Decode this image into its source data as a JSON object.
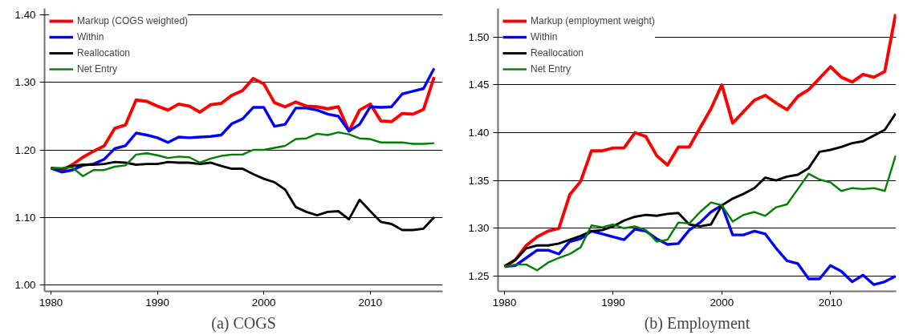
{
  "chart_data": [
    {
      "type": "line",
      "title": "(a) COGS",
      "x": [
        1980,
        1981,
        1982,
        1983,
        1984,
        1985,
        1986,
        1987,
        1988,
        1989,
        1990,
        1991,
        1992,
        1993,
        1994,
        1995,
        1996,
        1997,
        1998,
        1999,
        2000,
        2001,
        2002,
        2003,
        2004,
        2005,
        2006,
        2007,
        2008,
        2009,
        2010,
        2011,
        2012,
        2013,
        2014,
        2015,
        2016
      ],
      "xlim": [
        1979.4,
        2016.8
      ],
      "xticks": [
        1980,
        1990,
        2000,
        2010
      ],
      "ylim": [
        0.99,
        1.41
      ],
      "yticks": [
        {
          "value": 1.0,
          "label": "1.00"
        },
        {
          "value": 1.1,
          "label": "1.10"
        },
        {
          "value": 1.2,
          "label": "1.20"
        },
        {
          "value": 1.3,
          "label": "1.30"
        },
        {
          "value": 1.4,
          "label": "1.40"
        }
      ],
      "grid": "y",
      "legend": "top left",
      "line_style": "solid",
      "series": [
        {
          "name": "Markup (COGS weighted)",
          "color": "#ff0000",
          "values": [
            1.173,
            1.169,
            1.178,
            1.189,
            1.198,
            1.206,
            1.232,
            1.237,
            1.274,
            1.272,
            1.265,
            1.259,
            1.268,
            1.265,
            1.256,
            1.267,
            1.269,
            1.281,
            1.288,
            1.306,
            1.298,
            1.27,
            1.264,
            1.271,
            1.265,
            1.264,
            1.261,
            1.264,
            1.228,
            1.259,
            1.268,
            1.243,
            1.242,
            1.254,
            1.253,
            1.26,
            1.308
          ]
        },
        {
          "name": "Within",
          "color": "#0000ff",
          "values": [
            1.173,
            1.167,
            1.17,
            1.177,
            1.179,
            1.186,
            1.202,
            1.206,
            1.225,
            1.222,
            1.218,
            1.211,
            1.219,
            1.218,
            1.219,
            1.22,
            1.222,
            1.239,
            1.246,
            1.263,
            1.263,
            1.235,
            1.238,
            1.262,
            1.262,
            1.259,
            1.253,
            1.25,
            1.228,
            1.238,
            1.264,
            1.263,
            1.264,
            1.283,
            1.287,
            1.291,
            1.321
          ]
        },
        {
          "name": "Reallocation",
          "color": "#000000",
          "values": [
            1.173,
            1.172,
            1.176,
            1.178,
            1.178,
            1.179,
            1.182,
            1.181,
            1.178,
            1.179,
            1.179,
            1.182,
            1.181,
            1.181,
            1.179,
            1.181,
            1.176,
            1.172,
            1.172,
            1.164,
            1.157,
            1.152,
            1.141,
            1.115,
            1.108,
            1.103,
            1.108,
            1.109,
            1.097,
            1.126,
            1.109,
            1.093,
            1.09,
            1.081,
            1.081,
            1.083,
            1.1
          ]
        },
        {
          "name": "Net Entry",
          "color": "#008000",
          "values": [
            1.173,
            1.173,
            1.174,
            1.161,
            1.17,
            1.17,
            1.175,
            1.177,
            1.193,
            1.195,
            1.192,
            1.188,
            1.19,
            1.189,
            1.181,
            1.187,
            1.191,
            1.193,
            1.193,
            1.2,
            1.2,
            1.203,
            1.206,
            1.216,
            1.217,
            1.224,
            1.222,
            1.226,
            1.223,
            1.217,
            1.216,
            1.211,
            1.211,
            1.211,
            1.209,
            1.209,
            1.21
          ]
        }
      ]
    },
    {
      "type": "line",
      "title": "(b) Employment",
      "x": [
        1980,
        1981,
        1982,
        1983,
        1984,
        1985,
        1986,
        1987,
        1988,
        1989,
        1990,
        1991,
        1992,
        1993,
        1994,
        1995,
        1996,
        1997,
        1998,
        1999,
        2000,
        2001,
        2002,
        2003,
        2004,
        2005,
        2006,
        2007,
        2008,
        2009,
        2010,
        2011,
        2012,
        2013,
        2014,
        2015,
        2016
      ],
      "xlim": [
        1979.4,
        2016.05
      ],
      "xticks": [
        1980,
        1990,
        2000,
        2010
      ],
      "ylim": [
        1.234,
        1.53
      ],
      "yticks": [
        {
          "value": 1.25,
          "label": "1.25"
        },
        {
          "value": 1.3,
          "label": "1.30"
        },
        {
          "value": 1.35,
          "label": "1.35"
        },
        {
          "value": 1.4,
          "label": "1.40"
        },
        {
          "value": 1.45,
          "label": "1.45"
        },
        {
          "value": 1.5,
          "label": "1.50"
        }
      ],
      "grid": "y",
      "legend": "top left",
      "line_style": "solid",
      "series": [
        {
          "name": "Markup (employment weight)",
          "color": "#ff0000",
          "values": [
            1.26,
            1.267,
            1.282,
            1.291,
            1.297,
            1.3,
            1.335,
            1.349,
            1.381,
            1.381,
            1.384,
            1.384,
            1.4,
            1.396,
            1.376,
            1.366,
            1.385,
            1.385,
            1.405,
            1.425,
            1.45,
            1.41,
            1.422,
            1.434,
            1.439,
            1.431,
            1.424,
            1.438,
            1.445,
            1.457,
            1.469,
            1.458,
            1.453,
            1.461,
            1.458,
            1.464,
            1.524
          ]
        },
        {
          "name": "Within",
          "color": "#0000ff",
          "values": [
            1.26,
            1.261,
            1.269,
            1.277,
            1.277,
            1.273,
            1.286,
            1.289,
            1.297,
            1.294,
            1.291,
            1.288,
            1.299,
            1.297,
            1.289,
            1.283,
            1.284,
            1.298,
            1.306,
            1.317,
            1.324,
            1.293,
            1.293,
            1.297,
            1.294,
            1.279,
            1.266,
            1.263,
            1.247,
            1.247,
            1.261,
            1.255,
            1.244,
            1.251,
            1.241,
            1.244,
            1.25
          ]
        },
        {
          "name": "Reallocation",
          "color": "#000000",
          "values": [
            1.26,
            1.267,
            1.279,
            1.282,
            1.282,
            1.284,
            1.288,
            1.292,
            1.297,
            1.298,
            1.302,
            1.308,
            1.312,
            1.314,
            1.313,
            1.315,
            1.316,
            1.304,
            1.302,
            1.304,
            1.324,
            1.331,
            1.336,
            1.342,
            1.353,
            1.35,
            1.354,
            1.356,
            1.363,
            1.38,
            1.382,
            1.385,
            1.389,
            1.391,
            1.397,
            1.403,
            1.42
          ]
        },
        {
          "name": "Net Entry",
          "color": "#008000",
          "values": [
            1.26,
            1.262,
            1.262,
            1.256,
            1.264,
            1.269,
            1.273,
            1.28,
            1.303,
            1.301,
            1.304,
            1.3,
            1.302,
            1.298,
            1.286,
            1.288,
            1.306,
            1.305,
            1.317,
            1.327,
            1.324,
            1.307,
            1.314,
            1.317,
            1.313,
            1.322,
            1.325,
            1.341,
            1.357,
            1.351,
            1.348,
            1.339,
            1.342,
            1.341,
            1.342,
            1.339,
            1.376
          ]
        }
      ]
    }
  ]
}
